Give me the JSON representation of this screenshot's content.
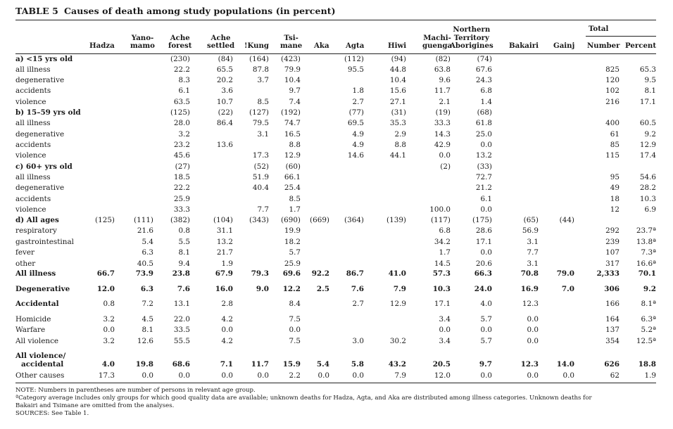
{
  "title": {
    "number": "TABLE 5",
    "text": "Causes of death among study populations (in percent)"
  },
  "columns": [
    {
      "key": "hadza",
      "lines": [
        "Hadza"
      ]
    },
    {
      "key": "yanomamo",
      "lines": [
        "Yano-",
        "mamo"
      ]
    },
    {
      "key": "ache_forest",
      "lines": [
        "Ache",
        "forest"
      ]
    },
    {
      "key": "ache_settled",
      "lines": [
        "Ache",
        "settled"
      ]
    },
    {
      "key": "kung",
      "lines": [
        "!Kung"
      ]
    },
    {
      "key": "tsimane",
      "lines": [
        "Tsi-",
        "mane"
      ]
    },
    {
      "key": "aka",
      "lines": [
        "Aka"
      ]
    },
    {
      "key": "agta",
      "lines": [
        "Agta"
      ]
    },
    {
      "key": "hiwi",
      "lines": [
        "Hiwi"
      ]
    },
    {
      "key": "machiguenga",
      "lines": [
        "Machi-",
        "guenga"
      ]
    },
    {
      "key": "northern_territory",
      "lines": [
        "Northern",
        "Territory",
        "Aborigines"
      ]
    },
    {
      "key": "bakairi",
      "lines": [
        "Bakairi"
      ]
    },
    {
      "key": "gainj",
      "lines": [
        "Gainj"
      ]
    },
    {
      "key": "total_number",
      "lines": [
        "Number"
      ]
    },
    {
      "key": "total_percent",
      "lines": [
        "Percent"
      ]
    }
  ],
  "total_header": "Total",
  "rows": [
    {
      "label": "a) <15 yrs old",
      "bold": true,
      "cells": [
        "",
        "",
        "(230)",
        "(84)",
        "(164)",
        "(423)",
        "",
        "(112)",
        "(94)",
        "(82)",
        "(74)",
        "",
        "",
        "",
        ""
      ]
    },
    {
      "label": "all illness",
      "cells": [
        "",
        "",
        "22.2",
        "65.5",
        "87.8",
        "79.9",
        "",
        "95.5",
        "44.8",
        "63.8",
        "67.6",
        "",
        "",
        "825",
        "65.3"
      ]
    },
    {
      "label": "degenerative",
      "cells": [
        "",
        "",
        "8.3",
        "20.2",
        "3.7",
        "10.4",
        "",
        "",
        "10.4",
        "9.6",
        "24.3",
        "",
        "",
        "120",
        "9.5"
      ]
    },
    {
      "label": "accidents",
      "cells": [
        "",
        "",
        "6.1",
        "3.6",
        "",
        "9.7",
        "",
        "1.8",
        "15.6",
        "11.7",
        "6.8",
        "",
        "",
        "102",
        "8.1"
      ]
    },
    {
      "label": "violence",
      "cells": [
        "",
        "",
        "63.5",
        "10.7",
        "8.5",
        "7.4",
        "",
        "2.7",
        "27.1",
        "2.1",
        "1.4",
        "",
        "",
        "216",
        "17.1"
      ]
    },
    {
      "label": "b) 15–59 yrs old",
      "bold": true,
      "cells": [
        "",
        "",
        "(125)",
        "(22)",
        "(127)",
        "(192)",
        "",
        "(77)",
        "(31)",
        "(19)",
        "(68)",
        "",
        "",
        "",
        ""
      ]
    },
    {
      "label": "all illness",
      "cells": [
        "",
        "",
        "28.0",
        "86.4",
        "79.5",
        "74.7",
        "",
        "69.5",
        "35.3",
        "33.3",
        "61.8",
        "",
        "",
        "400",
        "60.5"
      ]
    },
    {
      "label": "degenerative",
      "cells": [
        "",
        "",
        "3.2",
        "",
        "3.1",
        "16.5",
        "",
        "4.9",
        "2.9",
        "14.3",
        "25.0",
        "",
        "",
        "61",
        "9.2"
      ]
    },
    {
      "label": "accidents",
      "cells": [
        "",
        "",
        "23.2",
        "13.6",
        "",
        "8.8",
        "",
        "4.9",
        "8.8",
        "42.9",
        "0.0",
        "",
        "",
        "85",
        "12.9"
      ]
    },
    {
      "label": "violence",
      "cells": [
        "",
        "",
        "45.6",
        "",
        "17.3",
        "12.9",
        "",
        "14.6",
        "44.1",
        "0.0",
        "13.2",
        "",
        "",
        "115",
        "17.4"
      ]
    },
    {
      "label": "c) 60+ yrs old",
      "bold": true,
      "cells": [
        "",
        "",
        "(27)",
        "",
        "(52)",
        "(60)",
        "",
        "",
        "",
        "(2)",
        "(33)",
        "",
        "",
        "",
        ""
      ]
    },
    {
      "label": "all illness",
      "cells": [
        "",
        "",
        "18.5",
        "",
        "51.9",
        "66.1",
        "",
        "",
        "",
        "",
        "72.7",
        "",
        "",
        "95",
        "54.6"
      ]
    },
    {
      "label": "degenerative",
      "cells": [
        "",
        "",
        "22.2",
        "",
        "40.4",
        "25.4",
        "",
        "",
        "",
        "",
        "21.2",
        "",
        "",
        "49",
        "28.2"
      ]
    },
    {
      "label": "accidents",
      "cells": [
        "",
        "",
        "25.9",
        "",
        "",
        "8.5",
        "",
        "",
        "",
        "",
        "6.1",
        "",
        "",
        "18",
        "10.3"
      ]
    },
    {
      "label": "violence",
      "cells": [
        "",
        "",
        "33.3",
        "",
        "7.7",
        "1.7",
        "",
        "",
        "",
        "100.0",
        "0.0",
        "",
        "",
        "12",
        "6.9"
      ]
    },
    {
      "label": "d) All ages",
      "bold": true,
      "cells": [
        "(125)",
        "(111)",
        "(382)",
        "(104)",
        "(343)",
        "(690)",
        "(669)",
        "(364)",
        "(139)",
        "(117)",
        "(175)",
        "(65)",
        "(44)",
        "",
        ""
      ]
    },
    {
      "label": "respiratory",
      "cells": [
        "",
        "21.6",
        "0.8",
        "31.1",
        "",
        "19.9",
        "",
        "",
        "",
        "6.8",
        "28.6",
        "56.9",
        "",
        "292",
        "23.7ª"
      ]
    },
    {
      "label": "gastrointestinal",
      "cells": [
        "",
        "5.4",
        "5.5",
        "13.2",
        "",
        "18.2",
        "",
        "",
        "",
        "34.2",
        "17.1",
        "3.1",
        "",
        "239",
        "13.8ª"
      ]
    },
    {
      "label": "fever",
      "cells": [
        "",
        "6.3",
        "8.1",
        "21.7",
        "",
        "5.7",
        "",
        "",
        "",
        "1.7",
        "0.0",
        "7.7",
        "",
        "107",
        "7.3ª"
      ]
    },
    {
      "label": "other",
      "cells": [
        "",
        "40.5",
        "9.4",
        "1.9",
        "",
        "25.9",
        "",
        "",
        "",
        "14.5",
        "20.6",
        "3.1",
        "",
        "317",
        "16.6ª"
      ]
    },
    {
      "label": "All illness",
      "bold": true,
      "allbold": true,
      "cells": [
        "66.7",
        "73.9",
        "23.8",
        "67.9",
        "79.3",
        "69.6",
        "92.2",
        "86.7",
        "41.0",
        "57.3",
        "66.3",
        "70.8",
        "79.0",
        "2,333",
        "70.1"
      ]
    },
    {
      "label": "Degenerative",
      "bold": true,
      "allbold": true,
      "cells": [
        "12.0",
        "6.3",
        "7.6",
        "16.0",
        "9.0",
        "12.2",
        "2.5",
        "7.6",
        "7.9",
        "10.3",
        "24.0",
        "16.9",
        "7.0",
        "306",
        "9.2"
      ]
    },
    {
      "label": "Accidental",
      "bold": true,
      "cells": [
        "0.8",
        "7.2",
        "13.1",
        "2.8",
        "",
        "8.4",
        "",
        "2.7",
        "12.9",
        "17.1",
        "4.0",
        "12.3",
        "",
        "166",
        "8.1ª"
      ]
    },
    {
      "label": "Homicide",
      "cells": [
        "3.2",
        "4.5",
        "22.0",
        "4.2",
        "",
        "7.5",
        "",
        "",
        "",
        "3.4",
        "5.7",
        "0.0",
        "",
        "164",
        "6.3ª"
      ]
    },
    {
      "label": "Warfare",
      "cells": [
        "0.0",
        "8.1",
        "33.5",
        "0.0",
        "",
        "0.0",
        "",
        "",
        "",
        "0.0",
        "0.0",
        "0.0",
        "",
        "137",
        "5.2ª"
      ]
    },
    {
      "label": "All violence",
      "cells": [
        "3.2",
        "12.6",
        "55.5",
        "4.2",
        "",
        "7.5",
        "",
        "3.0",
        "30.2",
        "3.4",
        "5.7",
        "0.0",
        "",
        "354",
        "12.5ª"
      ]
    },
    {
      "label": "All violence/",
      "bold": true,
      "cells": [
        "",
        "",
        "",
        "",
        "",
        "",
        "",
        "",
        "",
        "",
        "",
        "",
        "",
        "",
        ""
      ]
    },
    {
      "label": "accidental",
      "bold": true,
      "allbold": true,
      "indent": true,
      "cells": [
        "4.0",
        "19.8",
        "68.6",
        "7.1",
        "11.7",
        "15.9",
        "5.4",
        "5.8",
        "43.2",
        "20.5",
        "9.7",
        "12.3",
        "14.0",
        "626",
        "18.8"
      ]
    },
    {
      "label": "Other causes",
      "cells": [
        "17.3",
        "0.0",
        "0.0",
        "0.0",
        "0.0",
        "2.2",
        "0.0",
        "0.0",
        "7.9",
        "12.0",
        "0.0",
        "0.0",
        "0.0",
        "62",
        "1.9"
      ]
    }
  ],
  "notes": [
    "NOTE: Numbers in parentheses are number of persons in relevant age group.",
    "ªCategory average includes only groups for which good quality data are available; unknown deaths for Hadza, Agta, and Aka are distributed among illness categories. Unknown deaths for",
    "Bakairi and Tsimane are omitted from the analyses.",
    "SOURCES: See Table 1."
  ]
}
